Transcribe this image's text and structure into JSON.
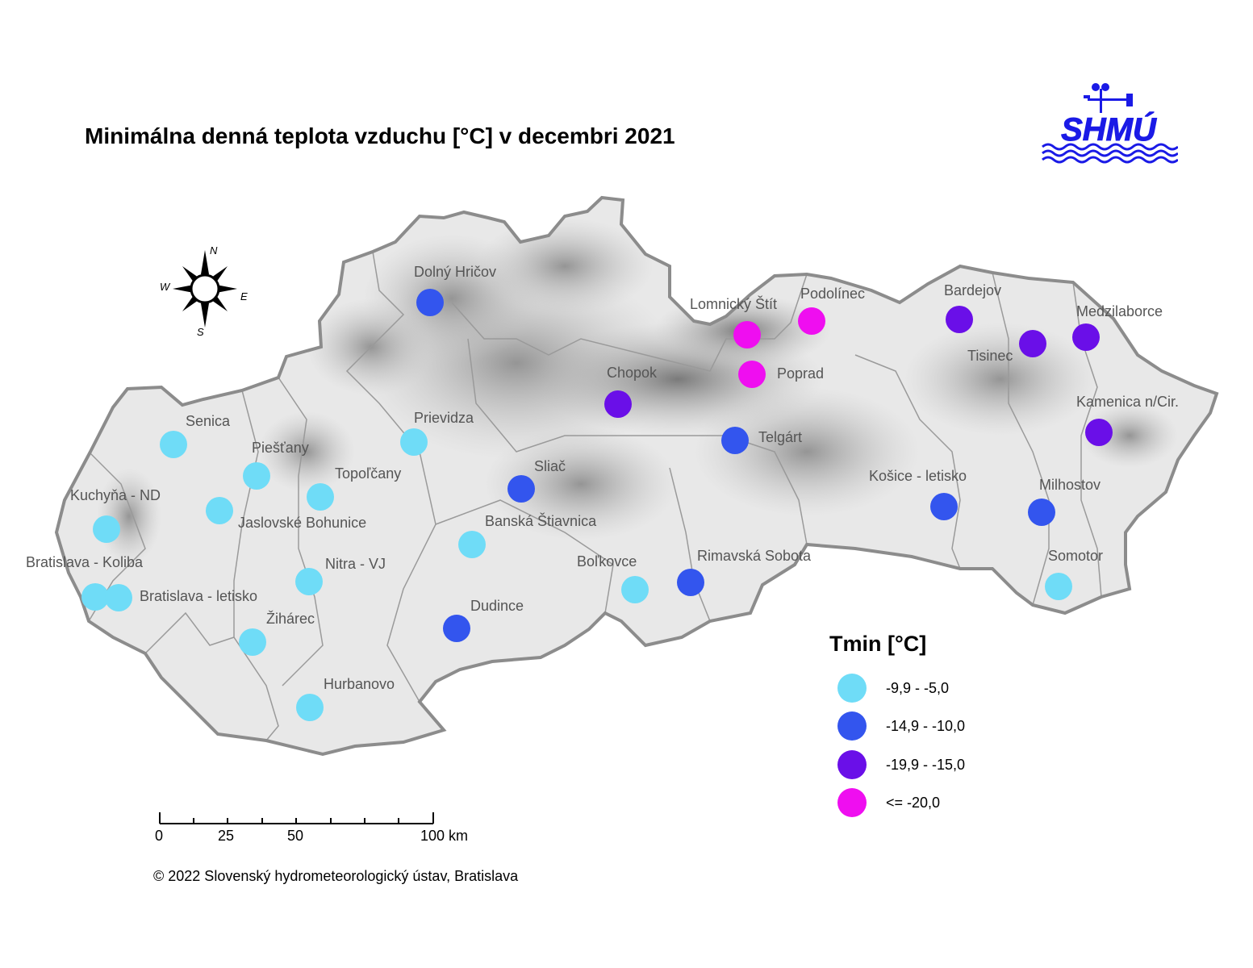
{
  "title": "Minimálna denná teplota vzduchu [°C] v decembri 2021",
  "logo": {
    "text": "SHMÚ",
    "color": "#1a1ae6"
  },
  "compass": {
    "n": "N",
    "s": "S",
    "e": "E",
    "w": "W"
  },
  "legend": {
    "title": "Tmin [°C]",
    "classes": [
      {
        "label": "-9,9 - -5,0",
        "color": "#6fdcf7"
      },
      {
        "label": "-14,9 - -10,0",
        "color": "#3355ee"
      },
      {
        "label": "-19,9 - -15,0",
        "color": "#6a0fe8"
      },
      {
        "label": "<= -20,0",
        "color": "#ef0ef0"
      }
    ]
  },
  "scale_bar": {
    "labels": [
      "0",
      "25",
      "50",
      "100 km"
    ]
  },
  "copyright": "© 2022 Slovenský hydrometeorologický ústav, Bratislava",
  "stations": [
    {
      "name": "Dolný Hričov",
      "class": 1
    },
    {
      "name": "Lomnický Štít",
      "class": 3
    },
    {
      "name": "Podolínec",
      "class": 3
    },
    {
      "name": "Bardejov",
      "class": 2
    },
    {
      "name": "Medzilaborce",
      "class": 2
    },
    {
      "name": "Tisinec",
      "class": 2
    },
    {
      "name": "Poprad",
      "class": 3
    },
    {
      "name": "Chopok",
      "class": 2
    },
    {
      "name": "Kamenica n/Cir.",
      "class": 2
    },
    {
      "name": "Senica",
      "class": 0
    },
    {
      "name": "Prievidza",
      "class": 0
    },
    {
      "name": "Telgárt",
      "class": 1
    },
    {
      "name": "Piešťany",
      "class": 0
    },
    {
      "name": "Topoľčany",
      "class": 0
    },
    {
      "name": "Sliač",
      "class": 1
    },
    {
      "name": "Kuchyňa - ND",
      "class": 0
    },
    {
      "name": "Jaslovské Bohunice",
      "class": 0
    },
    {
      "name": "Košice - letisko",
      "class": 1
    },
    {
      "name": "Milhostov",
      "class": 1
    },
    {
      "name": "Banská Štiavnica",
      "class": 0
    },
    {
      "name": "Bratislava - Koliba",
      "class": 0
    },
    {
      "name": "Nitra - VJ",
      "class": 0
    },
    {
      "name": "Boľkovce",
      "class": 0
    },
    {
      "name": "Rimavská Sobota",
      "class": 1
    },
    {
      "name": "Somotor",
      "class": 0
    },
    {
      "name": "Bratislava - letisko",
      "class": 0
    },
    {
      "name": "Dudince",
      "class": 1
    },
    {
      "name": "Žihárec",
      "class": 0
    },
    {
      "name": "Hurbanovo",
      "class": 0
    }
  ]
}
